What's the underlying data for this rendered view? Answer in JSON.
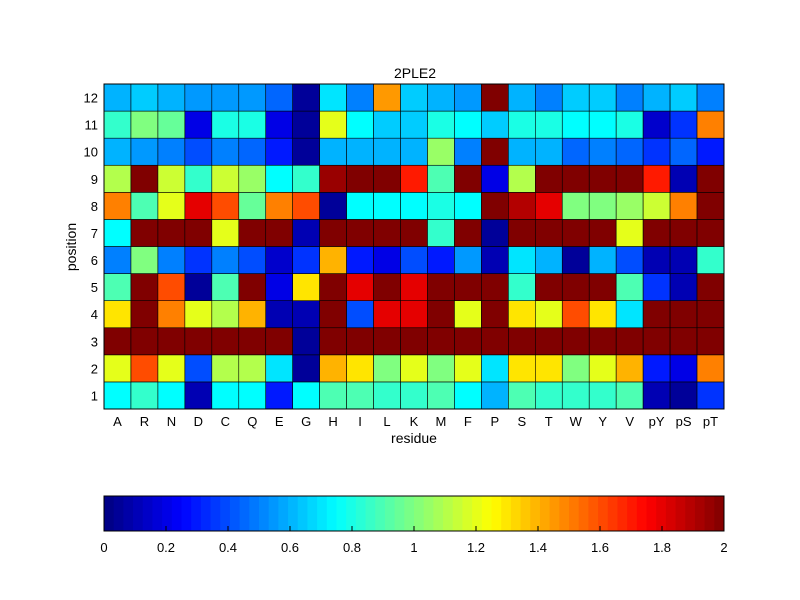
{
  "chart_data": {
    "type": "heatmap",
    "title": "2PLE2",
    "xlabel": "residue",
    "ylabel": "position",
    "x_categories": [
      "A",
      "R",
      "N",
      "D",
      "C",
      "Q",
      "E",
      "G",
      "H",
      "I",
      "L",
      "K",
      "M",
      "F",
      "P",
      "S",
      "T",
      "W",
      "Y",
      "V",
      "pY",
      "pS",
      "pT"
    ],
    "y_categories": [
      "1",
      "2",
      "3",
      "4",
      "5",
      "6",
      "7",
      "8",
      "9",
      "10",
      "11",
      "12"
    ],
    "color_range": [
      0,
      2
    ],
    "colormap": "jet",
    "colorbar_ticks": [
      "0",
      "0.2",
      "0.4",
      "0.6",
      "0.8",
      "1",
      "1.2",
      "1.4",
      "1.6",
      "1.8",
      "2"
    ],
    "values": [
      [
        0.75,
        0.85,
        0.75,
        0.1,
        0.75,
        0.75,
        0.3,
        0.75,
        0.9,
        0.9,
        0.85,
        0.85,
        0.9,
        0.75,
        0.6,
        0.9,
        0.85,
        0.85,
        0.85,
        0.9,
        0.1,
        0.05,
        0.35
      ],
      [
        1.2,
        1.6,
        1.2,
        0.4,
        1.1,
        1.1,
        0.7,
        0.05,
        1.4,
        1.3,
        1.0,
        1.2,
        1.0,
        1.2,
        0.7,
        1.3,
        1.3,
        1.0,
        1.2,
        1.4,
        0.3,
        0.2,
        1.5
      ],
      [
        2.0,
        2.0,
        2.0,
        2.0,
        2.0,
        2.0,
        2.0,
        0.05,
        2.0,
        2.0,
        2.0,
        2.0,
        2.0,
        2.0,
        2.0,
        2.0,
        2.0,
        2.0,
        2.0,
        2.0,
        2.0,
        2.0,
        2.0
      ],
      [
        1.3,
        2.0,
        1.5,
        1.2,
        1.1,
        1.4,
        0.1,
        0.1,
        2.0,
        0.4,
        1.8,
        1.8,
        2.0,
        1.2,
        2.0,
        1.3,
        1.2,
        1.6,
        1.3,
        0.7,
        2.0,
        2.0,
        2.0
      ],
      [
        0.9,
        2.0,
        1.6,
        0.05,
        0.9,
        2.0,
        0.2,
        1.3,
        2.0,
        1.8,
        2.0,
        1.8,
        2.0,
        2.0,
        2.0,
        0.85,
        2.0,
        2.0,
        2.0,
        0.9,
        0.35,
        0.1,
        2.0
      ],
      [
        0.5,
        1.0,
        0.5,
        0.35,
        0.5,
        0.4,
        0.15,
        0.35,
        1.4,
        0.3,
        0.2,
        0.4,
        0.3,
        0.55,
        0.1,
        0.7,
        0.6,
        0.05,
        0.6,
        0.4,
        0.1,
        0.1,
        0.85
      ],
      [
        0.75,
        2.0,
        2.0,
        2.0,
        1.2,
        2.0,
        2.0,
        0.1,
        2.0,
        2.0,
        2.0,
        2.0,
        0.85,
        2.0,
        0.05,
        2.0,
        2.0,
        2.0,
        2.0,
        1.2,
        2.0,
        2.0,
        2.0
      ],
      [
        1.5,
        0.9,
        1.2,
        1.8,
        1.6,
        0.95,
        1.5,
        1.6,
        0.05,
        0.75,
        0.75,
        0.75,
        0.8,
        0.75,
        2.0,
        1.9,
        1.8,
        1.0,
        1.0,
        1.05,
        1.15,
        1.5,
        2.0
      ],
      [
        1.1,
        2.0,
        1.15,
        0.85,
        1.15,
        1.05,
        0.75,
        0.85,
        1.95,
        2.0,
        2.0,
        1.7,
        0.9,
        2.0,
        0.2,
        1.1,
        2.0,
        2.0,
        2.0,
        2.0,
        1.7,
        0.1,
        2.0
      ],
      [
        0.6,
        0.55,
        0.5,
        0.4,
        0.5,
        0.45,
        0.3,
        0.05,
        0.6,
        0.6,
        0.6,
        0.6,
        1.05,
        0.5,
        2.0,
        0.6,
        0.6,
        0.45,
        0.5,
        0.45,
        0.35,
        0.45,
        0.3
      ],
      [
        0.85,
        1.0,
        0.95,
        0.2,
        0.8,
        0.8,
        0.2,
        0.05,
        1.2,
        0.75,
        0.65,
        0.65,
        0.8,
        0.75,
        0.65,
        0.8,
        0.8,
        0.75,
        0.75,
        0.8,
        0.15,
        0.35,
        1.5
      ],
      [
        0.6,
        0.65,
        0.6,
        0.55,
        0.55,
        0.55,
        0.45,
        0.05,
        0.7,
        0.5,
        1.45,
        0.65,
        0.6,
        0.55,
        2.0,
        0.6,
        0.5,
        0.65,
        0.65,
        0.5,
        0.6,
        0.65,
        0.5
      ]
    ]
  }
}
